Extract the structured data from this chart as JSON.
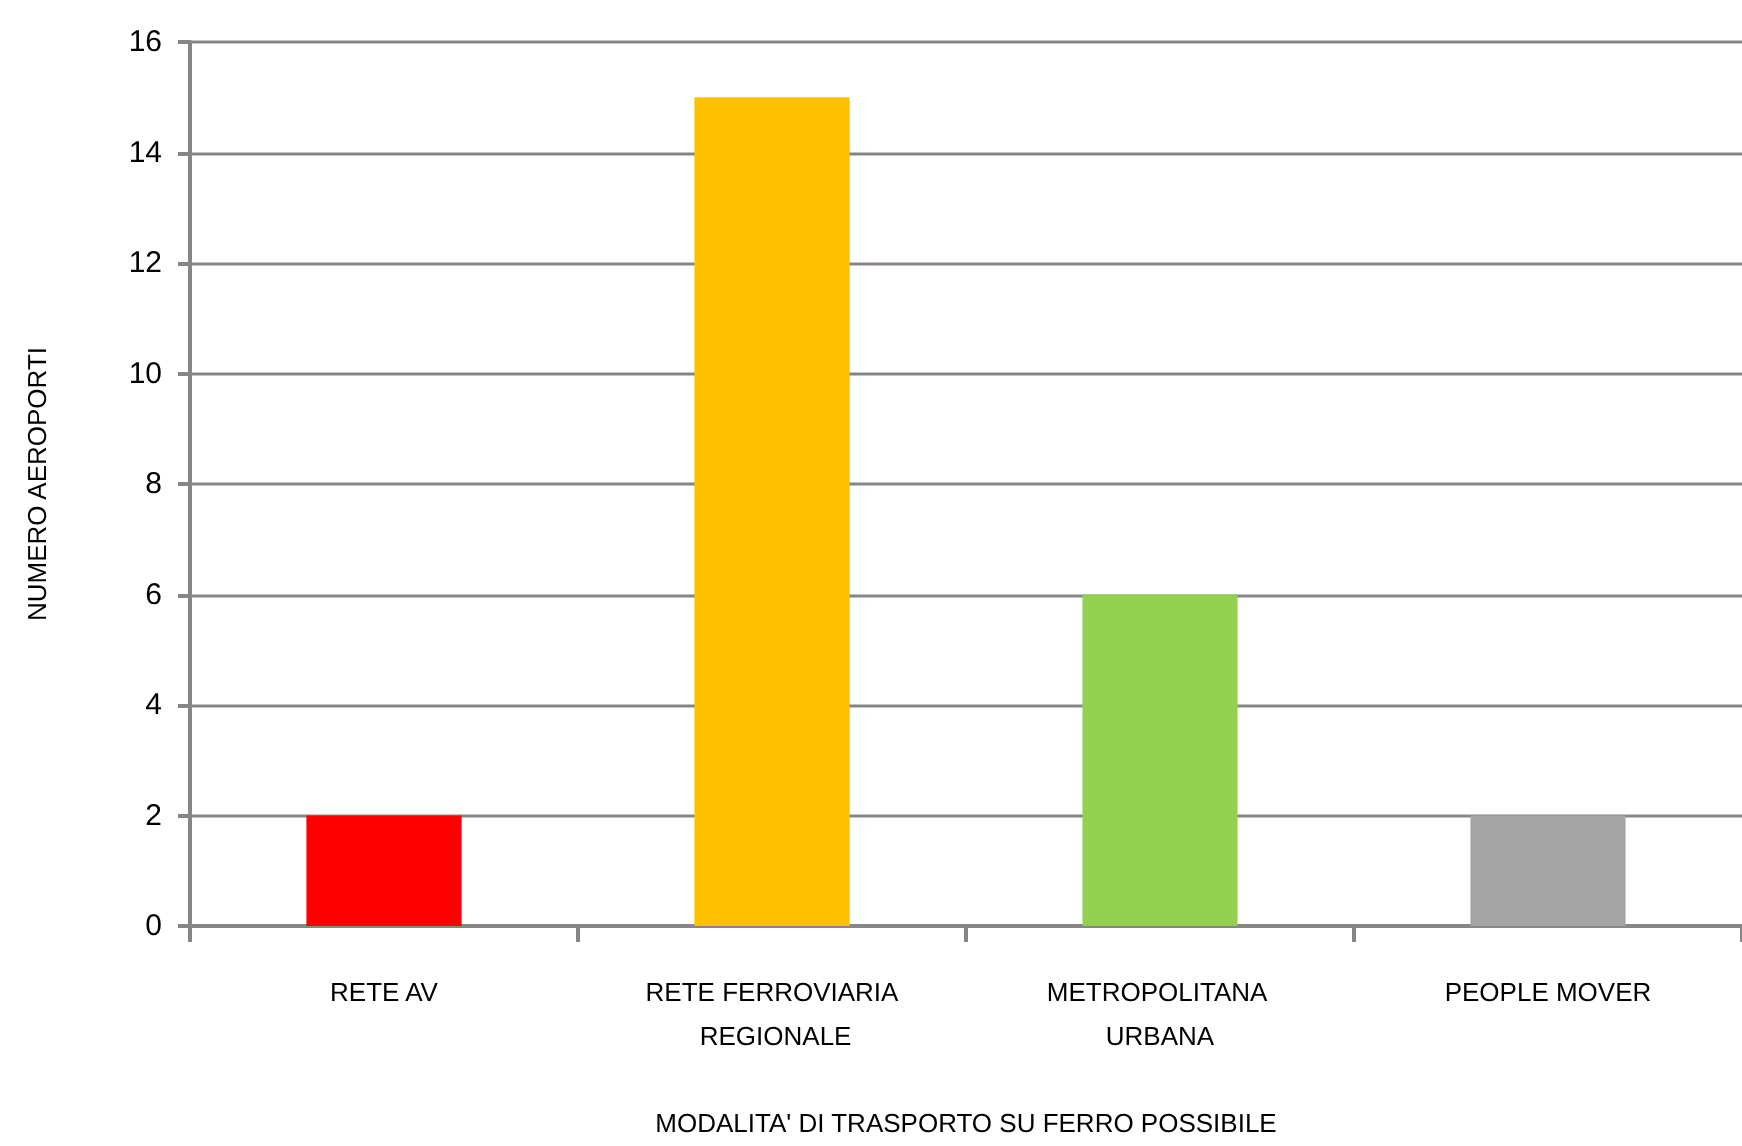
{
  "chart_data": {
    "type": "bar",
    "xlabel": "MODALITA' DI TRASPORTO SU FERRO POSSIBILE",
    "ylabel": "NUMERO AEROPORTI",
    "categories": [
      "RETE AV",
      "RETE FERROVIARIA REGIONALE",
      "METROPOLITANA URBANA",
      "PEOPLE MOVER"
    ],
    "values": [
      2,
      15,
      6,
      2
    ],
    "colors": [
      "#ff0000",
      "#ffc000",
      "#92d050",
      "#a5a5a5"
    ],
    "ylim": [
      0,
      16
    ],
    "yticks": [
      0,
      2,
      4,
      6,
      8,
      10,
      12,
      14,
      16
    ],
    "grid": "y"
  }
}
